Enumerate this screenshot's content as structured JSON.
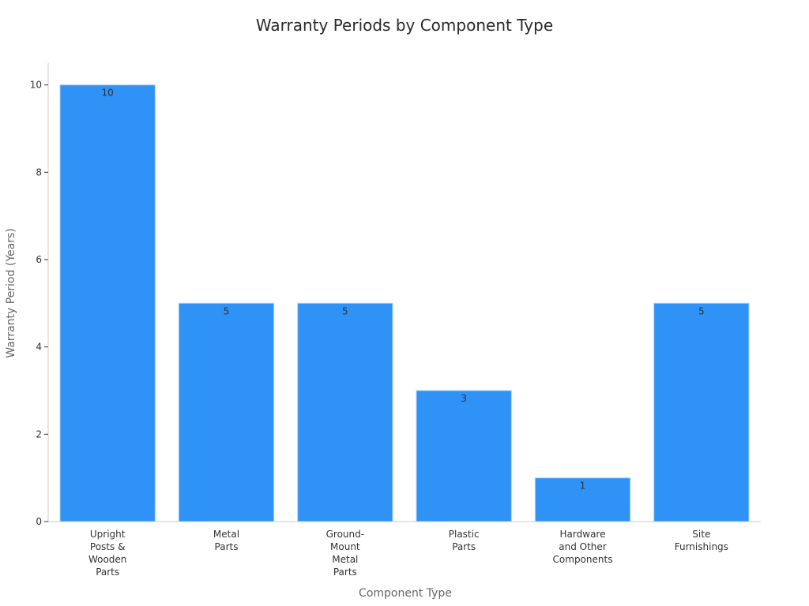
{
  "chart_data": {
    "type": "bar",
    "title": "Warranty Periods by Component Type",
    "xlabel": "Component Type",
    "ylabel": "Warranty Period (Years)",
    "categories": [
      [
        "Upright",
        "Posts &",
        "Wooden",
        "Parts"
      ],
      [
        "Metal",
        "Parts"
      ],
      [
        "Ground-",
        "Mount",
        "Metal",
        "Parts"
      ],
      [
        "Plastic",
        "Parts"
      ],
      [
        "Hardware",
        "and Other",
        "Components"
      ],
      [
        "Site",
        "Furnishings"
      ]
    ],
    "values": [
      10,
      5,
      5,
      3,
      1,
      5
    ],
    "data_labels": [
      "10",
      "5",
      "5",
      "3",
      "1",
      "5"
    ],
    "ylim": [
      0,
      10.5
    ],
    "yticks": [
      0,
      2,
      4,
      6,
      8,
      10
    ],
    "grid": false,
    "colors": {
      "bar": "#2f92f7",
      "bar_edge": "#a9cdf6",
      "axis": "#cccccc"
    }
  }
}
